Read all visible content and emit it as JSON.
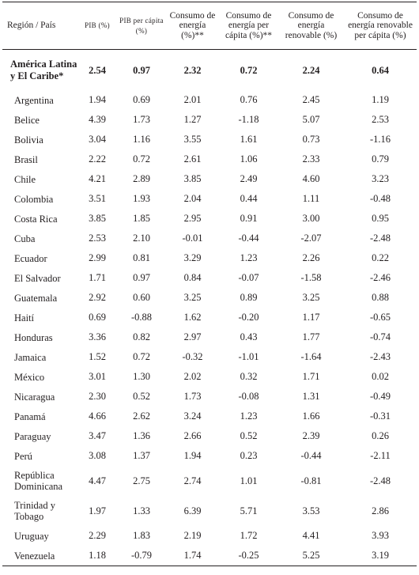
{
  "headers": [
    "Región / País",
    "PIB (%)",
    "PIB per cápita (%)",
    "Consumo de energía (%)**",
    "Consumo de energía per cápita (%)**",
    "Consumo de energía renovable (%)",
    "Consumo de energía renovable per cápita (%)"
  ],
  "rows": [
    {
      "region": "América Latina y El Caribe*",
      "values": [
        "2.54",
        "0.97",
        "2.32",
        "0.72",
        "2.24",
        "0.64"
      ]
    },
    {
      "region": "Argentina",
      "values": [
        "1.94",
        "0.69",
        "2.01",
        "0.76",
        "2.45",
        "1.19"
      ]
    },
    {
      "region": "Belice",
      "values": [
        "4.39",
        "1.73",
        "1.27",
        "-1.18",
        "5.07",
        "2.53"
      ]
    },
    {
      "region": "Bolivia",
      "values": [
        "3.04",
        "1.16",
        "3.55",
        "1.61",
        "0.73",
        "-1.16"
      ]
    },
    {
      "region": "Brasil",
      "values": [
        "2.22",
        "0.72",
        "2.61",
        "1.06",
        "2.33",
        "0.79"
      ]
    },
    {
      "region": "Chile",
      "values": [
        "4.21",
        "2.89",
        "3.85",
        "2.49",
        "4.60",
        "3.23"
      ]
    },
    {
      "region": "Colombia",
      "values": [
        "3.51",
        "1.93",
        "2.04",
        "0.44",
        "1.11",
        "-0.48"
      ]
    },
    {
      "region": "Costa Rica",
      "values": [
        "3.85",
        "1.85",
        "2.95",
        "0.91",
        "3.00",
        "0.95"
      ]
    },
    {
      "region": "Cuba",
      "values": [
        "2.53",
        "2.10",
        "-0.01",
        "-0.44",
        "-2.07",
        "-2.48"
      ]
    },
    {
      "region": "Ecuador",
      "values": [
        "2.99",
        "0.81",
        "3.29",
        "1.23",
        "2.26",
        "0.22"
      ]
    },
    {
      "region": "El Salvador",
      "values": [
        "1.71",
        "0.97",
        "0.84",
        "-0.07",
        "-1.58",
        "-2.46"
      ]
    },
    {
      "region": "Guatemala",
      "values": [
        "2.92",
        "0.60",
        "3.25",
        "0.89",
        "3.25",
        "0.88"
      ]
    },
    {
      "region": "Haití",
      "values": [
        "0.69",
        "-0.88",
        "1.62",
        "-0.20",
        "1.17",
        "-0.65"
      ]
    },
    {
      "region": "Honduras",
      "values": [
        "3.36",
        "0.82",
        "2.97",
        "0.43",
        "1.77",
        "-0.74"
      ]
    },
    {
      "region": "Jamaica",
      "values": [
        "1.52",
        "0.72",
        "-0.32",
        "-1.01",
        "-1.64",
        "-2.43"
      ]
    },
    {
      "region": "México",
      "values": [
        "3.01",
        "1.30",
        "2.02",
        "0.32",
        "1.71",
        "0.02"
      ]
    },
    {
      "region": "Nicaragua",
      "values": [
        "2.30",
        "0.52",
        "1.73",
        "-0.08",
        "1.31",
        "-0.49"
      ]
    },
    {
      "region": "Panamá",
      "values": [
        "4.66",
        "2.62",
        "3.24",
        "1.23",
        "1.66",
        "-0.31"
      ]
    },
    {
      "region": "Paraguay",
      "values": [
        "3.47",
        "1.36",
        "2.66",
        "0.52",
        "2.39",
        "0.26"
      ]
    },
    {
      "region": "Perú",
      "values": [
        "3.08",
        "1.37",
        "1.94",
        "0.23",
        "-0.44",
        "-2.11"
      ]
    },
    {
      "region": "República Dominicana",
      "values": [
        "4.47",
        "2.75",
        "2.74",
        "1.01",
        "-0.81",
        "-2.48"
      ]
    },
    {
      "region": "Trinidad y Tobago",
      "values": [
        "1.97",
        "1.33",
        "6.39",
        "5.71",
        "3.53",
        "2.86"
      ]
    },
    {
      "region": "Uruguay",
      "values": [
        "2.29",
        "1.83",
        "2.19",
        "1.72",
        "4.41",
        "3.93"
      ]
    },
    {
      "region": "Venezuela",
      "values": [
        "1.18",
        "-0.79",
        "1.74",
        "-0.25",
        "5.25",
        "3.19"
      ]
    }
  ]
}
